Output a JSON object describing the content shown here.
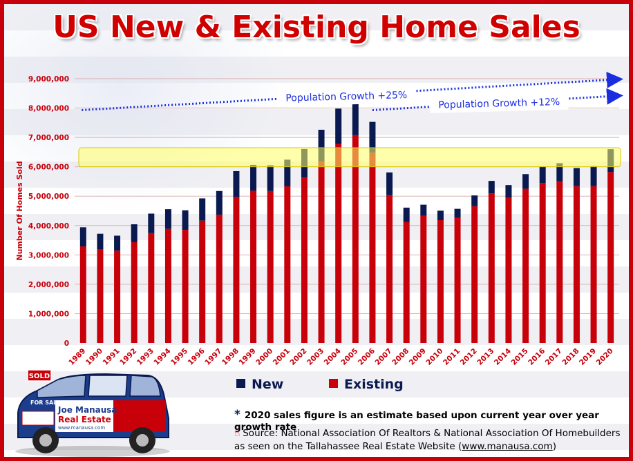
{
  "title": "US New & Existing Home Sales",
  "chart_data": {
    "type": "bar",
    "stacked": true,
    "title": "US New & Existing Home Sales",
    "ylabel": "Number Of Homes Sold",
    "xlabel": "",
    "ylim": [
      0,
      9000000
    ],
    "yticks": [
      "0",
      "1,000,000",
      "2,000,000",
      "3,000,000",
      "4,000,000",
      "5,000,000",
      "6,000,000",
      "7,000,000",
      "8,000,000",
      "9,000,000"
    ],
    "categories": [
      "1989",
      "1990",
      "1991",
      "1992",
      "1993",
      "1994",
      "1995",
      "1996",
      "1997",
      "1998",
      "1999",
      "2000",
      "2001",
      "2002",
      "2003",
      "2004",
      "2005",
      "2006",
      "2007",
      "2008",
      "2009",
      "2010",
      "2011",
      "2012",
      "2013",
      "2014",
      "2015",
      "2016",
      "2017",
      "2018",
      "2019",
      "2020"
    ],
    "series": [
      {
        "name": "Existing",
        "color": "#c8000a",
        "values": [
          3290000,
          3186000,
          3145000,
          3432000,
          3740000,
          3886000,
          3852000,
          4167000,
          4371000,
          4966000,
          5183000,
          5174000,
          5335000,
          5632000,
          6175000,
          6778000,
          7076000,
          6478000,
          5032000,
          4124000,
          4334000,
          4183000,
          4262000,
          4656000,
          5091000,
          4940000,
          5250000,
          5450000,
          5510000,
          5340000,
          5340000,
          5820000
        ]
      },
      {
        "name": "New",
        "color": "#0a1a50",
        "values": [
          650000,
          534000,
          509000,
          610000,
          666000,
          670000,
          667000,
          757000,
          804000,
          886000,
          880000,
          877000,
          908000,
          973000,
          1086000,
          1203000,
          1283000,
          1051000,
          776000,
          485000,
          375000,
          323000,
          306000,
          368000,
          429000,
          437000,
          501000,
          561000,
          613000,
          617000,
          683000,
          780000
        ]
      }
    ],
    "legend": {
      "position": "bottom",
      "items": [
        "New",
        "Existing"
      ]
    },
    "grid": true,
    "highlight_band": {
      "from": 6000000,
      "to": 6650000,
      "color": "#ffff66"
    },
    "annotations": [
      {
        "text": "Population Growth +25%",
        "from_year": "1989",
        "to_year": "2020"
      },
      {
        "text": "Population Growth +12%",
        "from_year": "2006",
        "to_year": "2020"
      }
    ]
  },
  "footer": {
    "note_marker": "*",
    "note": "2020 sales figure is an estimate based upon current year over year growth rate",
    "source_line1": "Source: National Association Of Realtors & National Association Of Homebuilders",
    "source_line2_prefix": "as seen on the Tallahassee Real Estate Website (",
    "source_url": "www.manausa.com",
    "source_line2_suffix": ")"
  },
  "car": {
    "sign_sold": "SOLD",
    "sign_for_sale": "FOR SALE",
    "brand_line1": "Joe Manausa",
    "brand_line2": "Real Estate",
    "brand_url": "www.manausa.com"
  }
}
